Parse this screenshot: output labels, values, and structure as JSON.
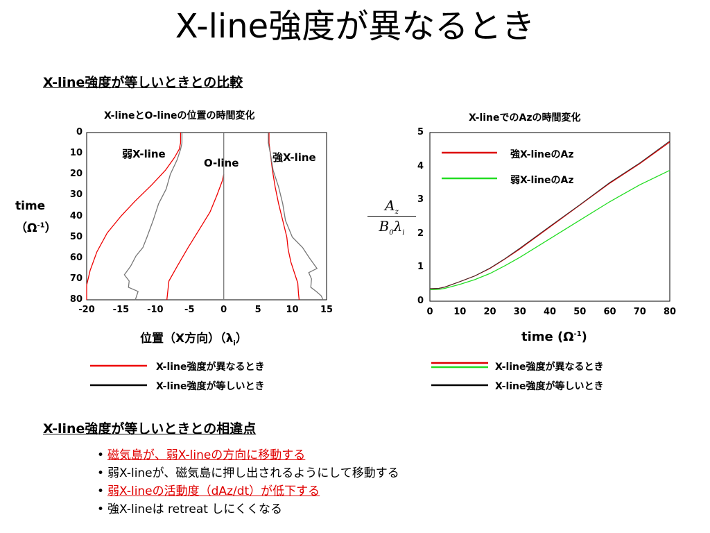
{
  "title": "X-line強度が異なるとき",
  "section1": "X-line強度が等しいときとの比較",
  "left_panel": {
    "title": "X-lineとO-lineの位置の時間変化",
    "ylabel_main": "time",
    "ylabel_unit": "（Ω",
    "ylabel_sup": "-1",
    "ylabel_close": "）",
    "xlabel_main": "位置（X方向）（λ",
    "xlabel_sub": "i",
    "xlabel_close": "）",
    "labels": {
      "weak": "弱X-line",
      "oline": "O-line",
      "strong": "強X-line"
    },
    "legend": [
      {
        "label": "X-line強度が異なるとき",
        "color": "#ee0000"
      },
      {
        "label": "X-line強度が等しいとき",
        "color": "#000000"
      }
    ]
  },
  "right_panel": {
    "title": "X-lineでのAzの時間変化",
    "xlabel_main": "time (Ω",
    "xlabel_sup": "-1",
    "xlabel_close": ")",
    "ylabel_num": "A",
    "ylabel_num_sub": "z",
    "ylabel_den_b": "B",
    "ylabel_den_sub": "0",
    "ylabel_den_lam": "λ",
    "ylabel_den_i": "i",
    "inner_legend": [
      {
        "label": "強X-lineのAz",
        "color": "#dd0000"
      },
      {
        "label": "弱X-lineのAz",
        "color": "#22dd22"
      }
    ],
    "legend": [
      {
        "label": "X-line強度が異なるとき",
        "colors": [
          "#dd0000",
          "#22dd22"
        ]
      },
      {
        "label": "X-line強度が等しいとき",
        "colors": [
          "#000000"
        ]
      }
    ]
  },
  "section2": "X-line強度が等しいときとの相違点",
  "bullets": [
    {
      "text": "磁気島が、弱X-lineの方向に移動する",
      "highlight": true
    },
    {
      "text": "弱X-lineが、磁気島に押し出されるようにして移動する",
      "highlight": false
    },
    {
      "text": "弱X-lineの活動度（dAz/dt）が低下する",
      "highlight": true
    },
    {
      "text": "強X-lineは retreat しにくくなる",
      "highlight": false
    }
  ],
  "bullet_symbol": "•",
  "chart_data": [
    {
      "type": "line",
      "title": "X-lineとO-lineの位置の時間変化",
      "xlabel": "位置（X方向）（λi）",
      "ylabel": "time（Ω-1）",
      "xlim": [
        -20,
        15
      ],
      "ylim": [
        0,
        80
      ],
      "y_inverted": true,
      "x_ticks": [
        "-20",
        "-15",
        "-10",
        "-5",
        "0",
        "5",
        "10",
        "15"
      ],
      "y_ticks": [
        "0",
        "10",
        "20",
        "30",
        "40",
        "50",
        "60",
        "70",
        "80"
      ],
      "series": [
        {
          "group": "X-line強度が異なるとき",
          "color": "#ee0000",
          "points": [
            [
              -6.3,
              0
            ],
            [
              -6.3,
              5
            ],
            [
              -6.5,
              8
            ],
            [
              -7.2,
              12
            ],
            [
              -8.5,
              18
            ],
            [
              -10.5,
              25
            ],
            [
              -13,
              33
            ],
            [
              -15,
              40
            ],
            [
              -17,
              48
            ],
            [
              -18.5,
              57
            ],
            [
              -19.5,
              66
            ],
            [
              -20,
              73
            ],
            [
              -20,
              80
            ]
          ]
        },
        {
          "group": "X-line強度が異なるとき",
          "color": "#ee0000",
          "points": [
            [
              0,
              20
            ],
            [
              -0.2,
              23
            ],
            [
              -1,
              30
            ],
            [
              -2,
              38
            ],
            [
              -3.5,
              46
            ],
            [
              -5.2,
              55
            ],
            [
              -6.8,
              64
            ],
            [
              -8,
              71
            ],
            [
              -8.3,
              80
            ]
          ]
        },
        {
          "group": "X-line強度が異なるとき",
          "color": "#ee0000",
          "points": [
            [
              6.6,
              0
            ],
            [
              6.6,
              5
            ],
            [
              6.8,
              10
            ],
            [
              7.1,
              18
            ],
            [
              7.5,
              26
            ],
            [
              8,
              34
            ],
            [
              8.6,
              42
            ],
            [
              9.2,
              50
            ],
            [
              9.4,
              56
            ],
            [
              9.8,
              62
            ],
            [
              10.3,
              67
            ],
            [
              10.8,
              72
            ],
            [
              10.9,
              77
            ],
            [
              11,
              80
            ]
          ]
        },
        {
          "group": "X-line強度が等しいとき",
          "color": "#777777",
          "points": [
            [
              -6.1,
              0
            ],
            [
              -6.1,
              5
            ],
            [
              -6.3,
              8
            ],
            [
              -6.8,
              13
            ],
            [
              -7.8,
              20
            ],
            [
              -8.4,
              27
            ],
            [
              -9.5,
              34
            ],
            [
              -10.3,
              42
            ],
            [
              -11.2,
              50
            ],
            [
              -11.8,
              55
            ],
            [
              -12.8,
              59
            ],
            [
              -13.6,
              64
            ],
            [
              -14.5,
              68
            ],
            [
              -13.8,
              71
            ],
            [
              -13.9,
              74
            ],
            [
              -12.5,
              76
            ],
            [
              -12.9,
              80
            ]
          ]
        },
        {
          "group": "X-line強度が等しいとき",
          "color": "#777777",
          "points": [
            [
              0,
              0
            ],
            [
              0,
              80
            ]
          ]
        },
        {
          "group": "X-line強度が等しいとき",
          "color": "#777777",
          "points": [
            [
              6.5,
              0
            ],
            [
              6.5,
              5
            ],
            [
              6.8,
              10
            ],
            [
              7.2,
              18
            ],
            [
              8,
              26
            ],
            [
              8.6,
              34
            ],
            [
              9,
              42
            ],
            [
              10,
              50
            ],
            [
              11.5,
              55
            ],
            [
              12.5,
              60
            ],
            [
              13.6,
              65
            ],
            [
              12.4,
              67
            ],
            [
              12.8,
              70
            ],
            [
              12.7,
              74
            ],
            [
              13.5,
              76
            ],
            [
              14.2,
              78
            ],
            [
              14.5,
              80
            ]
          ]
        }
      ],
      "annotations": [
        "弱X-line",
        "O-line",
        "強X-line"
      ]
    },
    {
      "type": "line",
      "title": "X-lineでのAzの時間変化",
      "xlabel": "time (Ω-1)",
      "ylabel": "Az/(B0 λi)",
      "xlim": [
        0,
        80
      ],
      "ylim": [
        0,
        5
      ],
      "x_ticks": [
        "0",
        "10",
        "20",
        "30",
        "40",
        "50",
        "60",
        "70",
        "80"
      ],
      "y_ticks": [
        "0",
        "1",
        "2",
        "3",
        "4",
        "5"
      ],
      "series": [
        {
          "name": "強X-lineのAz",
          "color": "#dd0000",
          "x": [
            0,
            3,
            5,
            10,
            15,
            20,
            25,
            30,
            40,
            50,
            60,
            70,
            80
          ],
          "values": [
            0.37,
            0.38,
            0.42,
            0.58,
            0.75,
            0.97,
            1.25,
            1.55,
            2.2,
            2.85,
            3.5,
            4.08,
            4.72
          ]
        },
        {
          "name": "弱X-lineのAz",
          "color": "#22dd22",
          "x": [
            0,
            3,
            5,
            10,
            15,
            20,
            25,
            30,
            40,
            50,
            60,
            70,
            80
          ],
          "values": [
            0.34,
            0.35,
            0.38,
            0.5,
            0.64,
            0.82,
            1.05,
            1.3,
            1.85,
            2.4,
            2.95,
            3.45,
            3.88
          ]
        },
        {
          "name": "",
          "color": "#333333",
          "x": [
            0,
            3,
            5,
            10,
            15,
            20,
            25,
            30,
            40,
            50,
            60,
            70,
            80
          ],
          "values": [
            0.37,
            0.38,
            0.42,
            0.58,
            0.75,
            0.98,
            1.26,
            1.57,
            2.22,
            2.86,
            3.52,
            4.1,
            4.75
          ]
        }
      ]
    }
  ]
}
